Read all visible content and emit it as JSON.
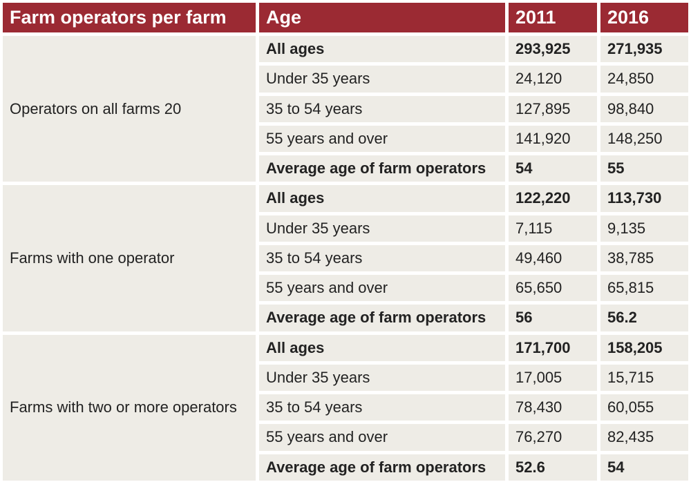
{
  "chart_data": {
    "type": "table",
    "headers": [
      "Farm operators per farm",
      "Age",
      "2011",
      "2016"
    ],
    "groups": [
      {
        "label": "Operators on all farms 20",
        "rows": [
          {
            "age": "All ages",
            "v2011": "293,925",
            "v2016": "271,935",
            "bold": true
          },
          {
            "age": "Under 35 years",
            "v2011": "24,120",
            "v2016": "24,850",
            "bold": false
          },
          {
            "age": "35 to 54 years",
            "v2011": "127,895",
            "v2016": "98,840",
            "bold": false
          },
          {
            "age": "55 years and over",
            "v2011": "141,920",
            "v2016": "148,250",
            "bold": false
          },
          {
            "age": "Average age of farm operators",
            "v2011": "54",
            "v2016": "55",
            "bold": true
          }
        ]
      },
      {
        "label": "Farms with one operator",
        "rows": [
          {
            "age": "All ages",
            "v2011": "122,220",
            "v2016": "113,730",
            "bold": true
          },
          {
            "age": "Under 35 years",
            "v2011": "7,115",
            "v2016": "9,135",
            "bold": false
          },
          {
            "age": "35 to 54 years",
            "v2011": "49,460",
            "v2016": "38,785",
            "bold": false
          },
          {
            "age": "55 years and over",
            "v2011": "65,650",
            "v2016": "65,815",
            "bold": false
          },
          {
            "age": "Average age of farm operators",
            "v2011": "56",
            "v2016": "56.2",
            "bold": true
          }
        ]
      },
      {
        "label": "Farms with two or more operators",
        "rows": [
          {
            "age": "All ages",
            "v2011": "171,700",
            "v2016": "158,205",
            "bold": true
          },
          {
            "age": "Under 35 years",
            "v2011": "17,005",
            "v2016": "15,715",
            "bold": false
          },
          {
            "age": "35 to 54 years",
            "v2011": "78,430",
            "v2016": "60,055",
            "bold": false
          },
          {
            "age": "55 years and over",
            "v2011": "76,270",
            "v2016": "82,435",
            "bold": false
          },
          {
            "age": "Average age of farm operators",
            "v2011": "52.6",
            "v2016": "54",
            "bold": true
          }
        ]
      }
    ]
  },
  "colors": {
    "header_bg": "#9b2a33",
    "header_text": "#ffffff",
    "cell_bg": "#eeece6",
    "cell_text": "#222222"
  }
}
